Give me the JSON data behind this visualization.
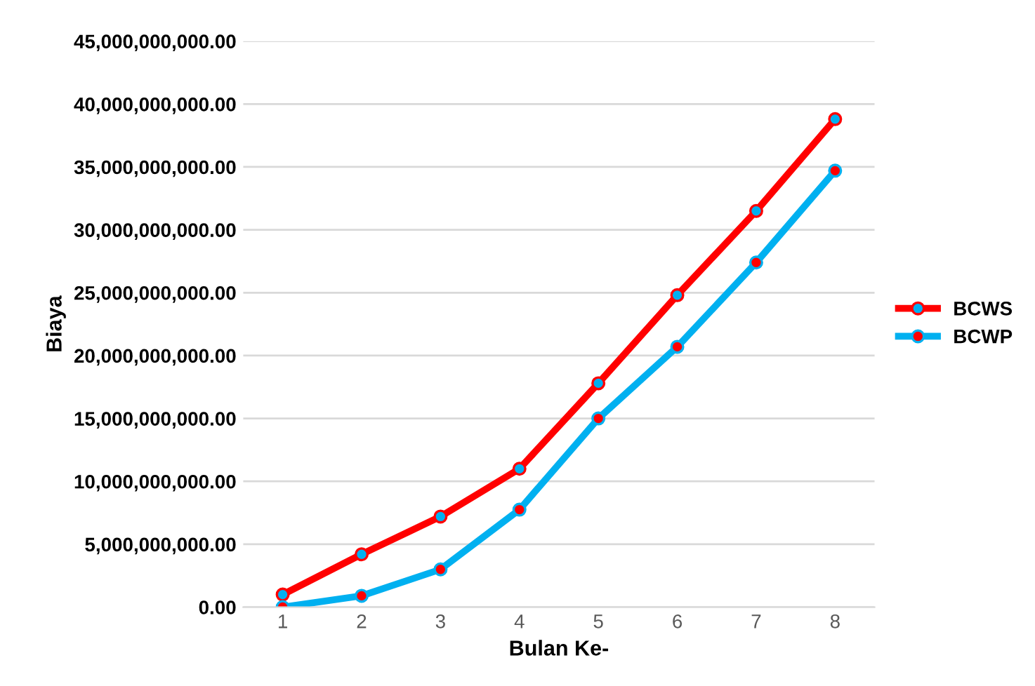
{
  "chart_data": {
    "type": "line",
    "xlabel": "Bulan Ke-",
    "ylabel": "Biaya",
    "categories": [
      "1",
      "2",
      "3",
      "4",
      "5",
      "6",
      "7",
      "8"
    ],
    "series": [
      {
        "name": "BCWS",
        "color": "#ff0000",
        "values": [
          1000000000.0,
          4200000000.0,
          7200000000.0,
          11000000000.0,
          17800000000.0,
          24800000000.0,
          31500000000.0,
          38800000000.0
        ]
      },
      {
        "name": "BCWP",
        "color": "#00b0f0",
        "values": [
          0,
          900000000.0,
          3000000000.0,
          7750000000.0,
          15000000000.0,
          20700000000.0,
          27400000000.0,
          34700000000.0
        ]
      }
    ],
    "ylim": [
      0,
      45000000000
    ],
    "yticks": [
      {
        "value": 0,
        "label": "0.00"
      },
      {
        "value": 5000000000,
        "label": "5,000,000,000.00"
      },
      {
        "value": 10000000000,
        "label": "10,000,000,000.00"
      },
      {
        "value": 15000000000,
        "label": "15,000,000,000.00"
      },
      {
        "value": 20000000000,
        "label": "20,000,000,000.00"
      },
      {
        "value": 25000000000,
        "label": "25,000,000,000.00"
      },
      {
        "value": 30000000000,
        "label": "30,000,000,000.00"
      },
      {
        "value": 35000000000,
        "label": "35,000,000,000.00"
      },
      {
        "value": 40000000000,
        "label": "40,000,000,000.00"
      },
      {
        "value": 45000000000,
        "label": "45,000,000,000.00"
      }
    ],
    "grid": "y",
    "legend": "right",
    "marker": "circle",
    "line_style": "solid"
  }
}
